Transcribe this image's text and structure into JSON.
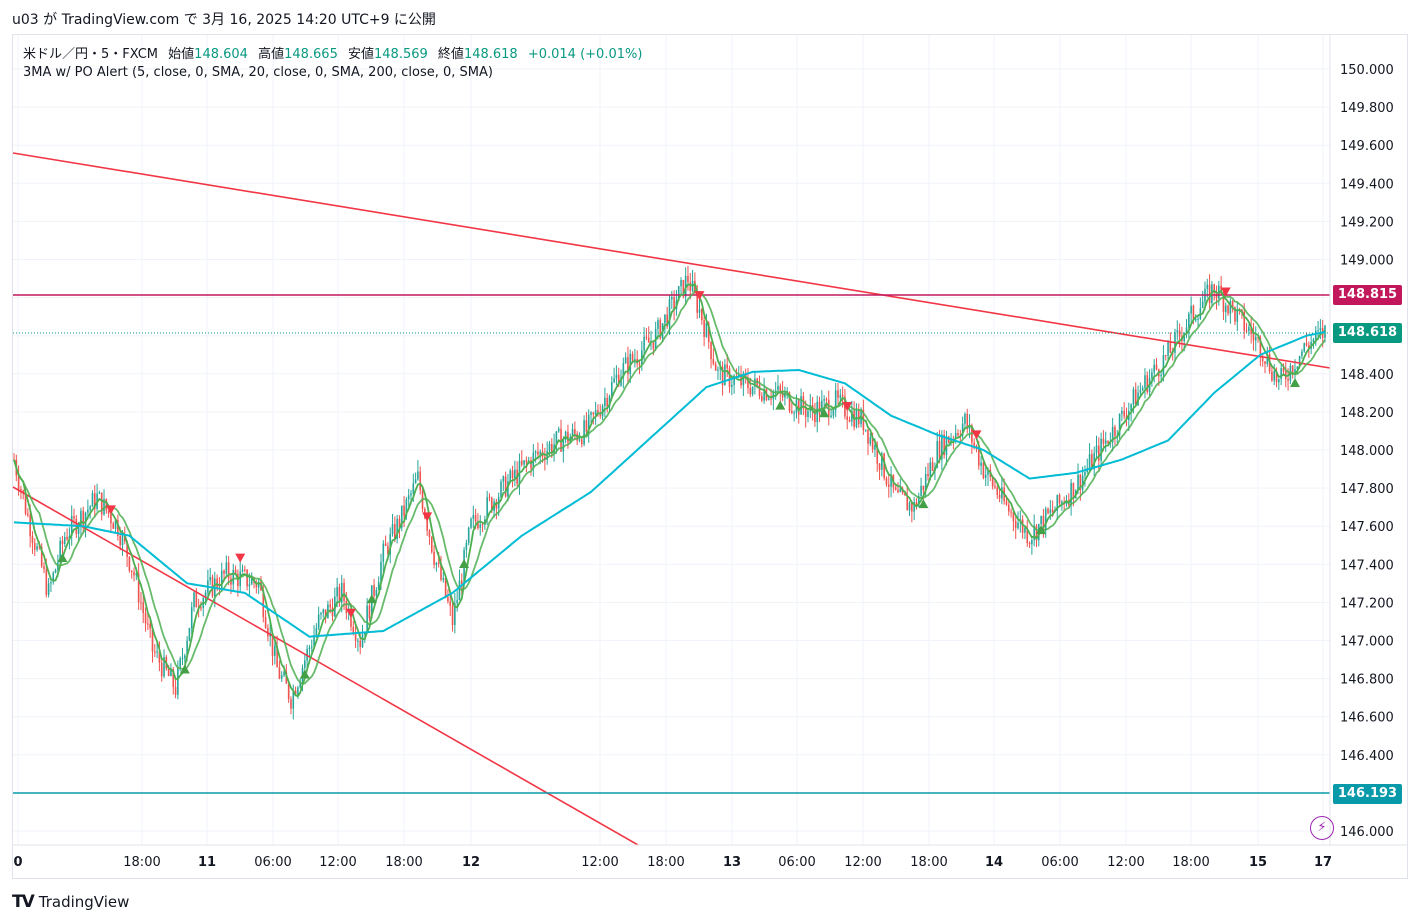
{
  "header": {
    "caption": "u03 が TradingView.com で 3月 16, 2025 14:20 UTC+9 に公開"
  },
  "legend": {
    "symbol": "米ドル／円・5・FXCM",
    "open_label": "始値",
    "open": "148.604",
    "high_label": "高値",
    "high": "148.665",
    "low_label": "安値",
    "low": "148.569",
    "close_label": "終値",
    "close": "148.618",
    "change": "+0.014 (+0.01%)",
    "indicator": "3MA w/ PO Alert (5, close, 0, SMA, 20, close, 0, SMA, 200, close, 0, SMA)"
  },
  "price_tags": {
    "level_red": "148.815",
    "last_price": "148.618",
    "level_teal": "146.193"
  },
  "brand": {
    "name": "TradingView"
  },
  "colors": {
    "up": "#26a69a",
    "down": "#ef5350",
    "ma200": "#00bcd4",
    "ma_fast": "#4caf50",
    "trendline": "#f23645",
    "level_red": "#c2185b",
    "level_teal": "#089aa8",
    "last_price": "#089981"
  },
  "chart_data": {
    "type": "candlestick",
    "symbol": "USDJPY",
    "interval": "5",
    "ylim": [
      145.92,
      150.15
    ],
    "y_ticks": [
      "150.000",
      "149.800",
      "149.600",
      "149.400",
      "149.200",
      "149.000",
      "148.800",
      "148.600",
      "148.400",
      "148.200",
      "148.000",
      "147.800",
      "147.600",
      "147.400",
      "147.200",
      "147.000",
      "146.800",
      "146.600",
      "146.400",
      "146.000"
    ],
    "x_ticks": [
      "0",
      "18:00",
      "11",
      "06:00",
      "12:00",
      "18:00",
      "12",
      "12:00",
      "18:00",
      "13",
      "06:00",
      "12:00",
      "18:00",
      "14",
      "06:00",
      "12:00",
      "18:00",
      "15",
      "17"
    ],
    "horizontal_levels": [
      148.815,
      146.193
    ],
    "last_price": 148.618,
    "price_anchors": [
      [
        0,
        147.95
      ],
      [
        6,
        147.65
      ],
      [
        15,
        147.25
      ],
      [
        22,
        147.55
      ],
      [
        36,
        147.75
      ],
      [
        45,
        147.6
      ],
      [
        52,
        147.35
      ],
      [
        60,
        146.95
      ],
      [
        70,
        146.75
      ],
      [
        78,
        147.2
      ],
      [
        92,
        147.35
      ],
      [
        106,
        147.3
      ],
      [
        114,
        146.85
      ],
      [
        120,
        146.7
      ],
      [
        132,
        147.1
      ],
      [
        142,
        147.25
      ],
      [
        150,
        147.0
      ],
      [
        160,
        147.45
      ],
      [
        168,
        147.65
      ],
      [
        175,
        147.85
      ],
      [
        182,
        147.45
      ],
      [
        190,
        147.1
      ],
      [
        198,
        147.6
      ],
      [
        212,
        147.8
      ],
      [
        224,
        147.95
      ],
      [
        236,
        148.05
      ],
      [
        248,
        148.1
      ],
      [
        262,
        148.4
      ],
      [
        278,
        148.6
      ],
      [
        292,
        148.9
      ],
      [
        298,
        148.7
      ],
      [
        305,
        148.4
      ],
      [
        316,
        148.35
      ],
      [
        330,
        148.3
      ],
      [
        345,
        148.2
      ],
      [
        356,
        148.25
      ],
      [
        368,
        148.15
      ],
      [
        382,
        147.75
      ],
      [
        390,
        147.7
      ],
      [
        400,
        148.0
      ],
      [
        412,
        148.15
      ],
      [
        420,
        147.9
      ],
      [
        430,
        147.7
      ],
      [
        440,
        147.55
      ],
      [
        452,
        147.7
      ],
      [
        462,
        147.85
      ],
      [
        476,
        148.1
      ],
      [
        490,
        148.35
      ],
      [
        500,
        148.5
      ],
      [
        510,
        148.7
      ],
      [
        520,
        148.85
      ],
      [
        530,
        148.7
      ],
      [
        540,
        148.55
      ],
      [
        548,
        148.35
      ],
      [
        560,
        148.55
      ],
      [
        568,
        148.62
      ]
    ],
    "ma_200_anchors": [
      [
        0,
        147.62
      ],
      [
        30,
        147.6
      ],
      [
        50,
        147.55
      ],
      [
        75,
        147.3
      ],
      [
        100,
        147.25
      ],
      [
        128,
        147.02
      ],
      [
        160,
        147.05
      ],
      [
        190,
        147.25
      ],
      [
        220,
        147.55
      ],
      [
        250,
        147.78
      ],
      [
        270,
        148.0
      ],
      [
        300,
        148.33
      ],
      [
        320,
        148.41
      ],
      [
        340,
        148.42
      ],
      [
        360,
        148.35
      ],
      [
        380,
        148.18
      ],
      [
        400,
        148.08
      ],
      [
        420,
        148.0
      ],
      [
        440,
        147.85
      ],
      [
        460,
        147.88
      ],
      [
        480,
        147.95
      ],
      [
        500,
        148.05
      ],
      [
        520,
        148.3
      ],
      [
        540,
        148.5
      ],
      [
        560,
        148.6
      ],
      [
        568,
        148.62
      ]
    ]
  }
}
